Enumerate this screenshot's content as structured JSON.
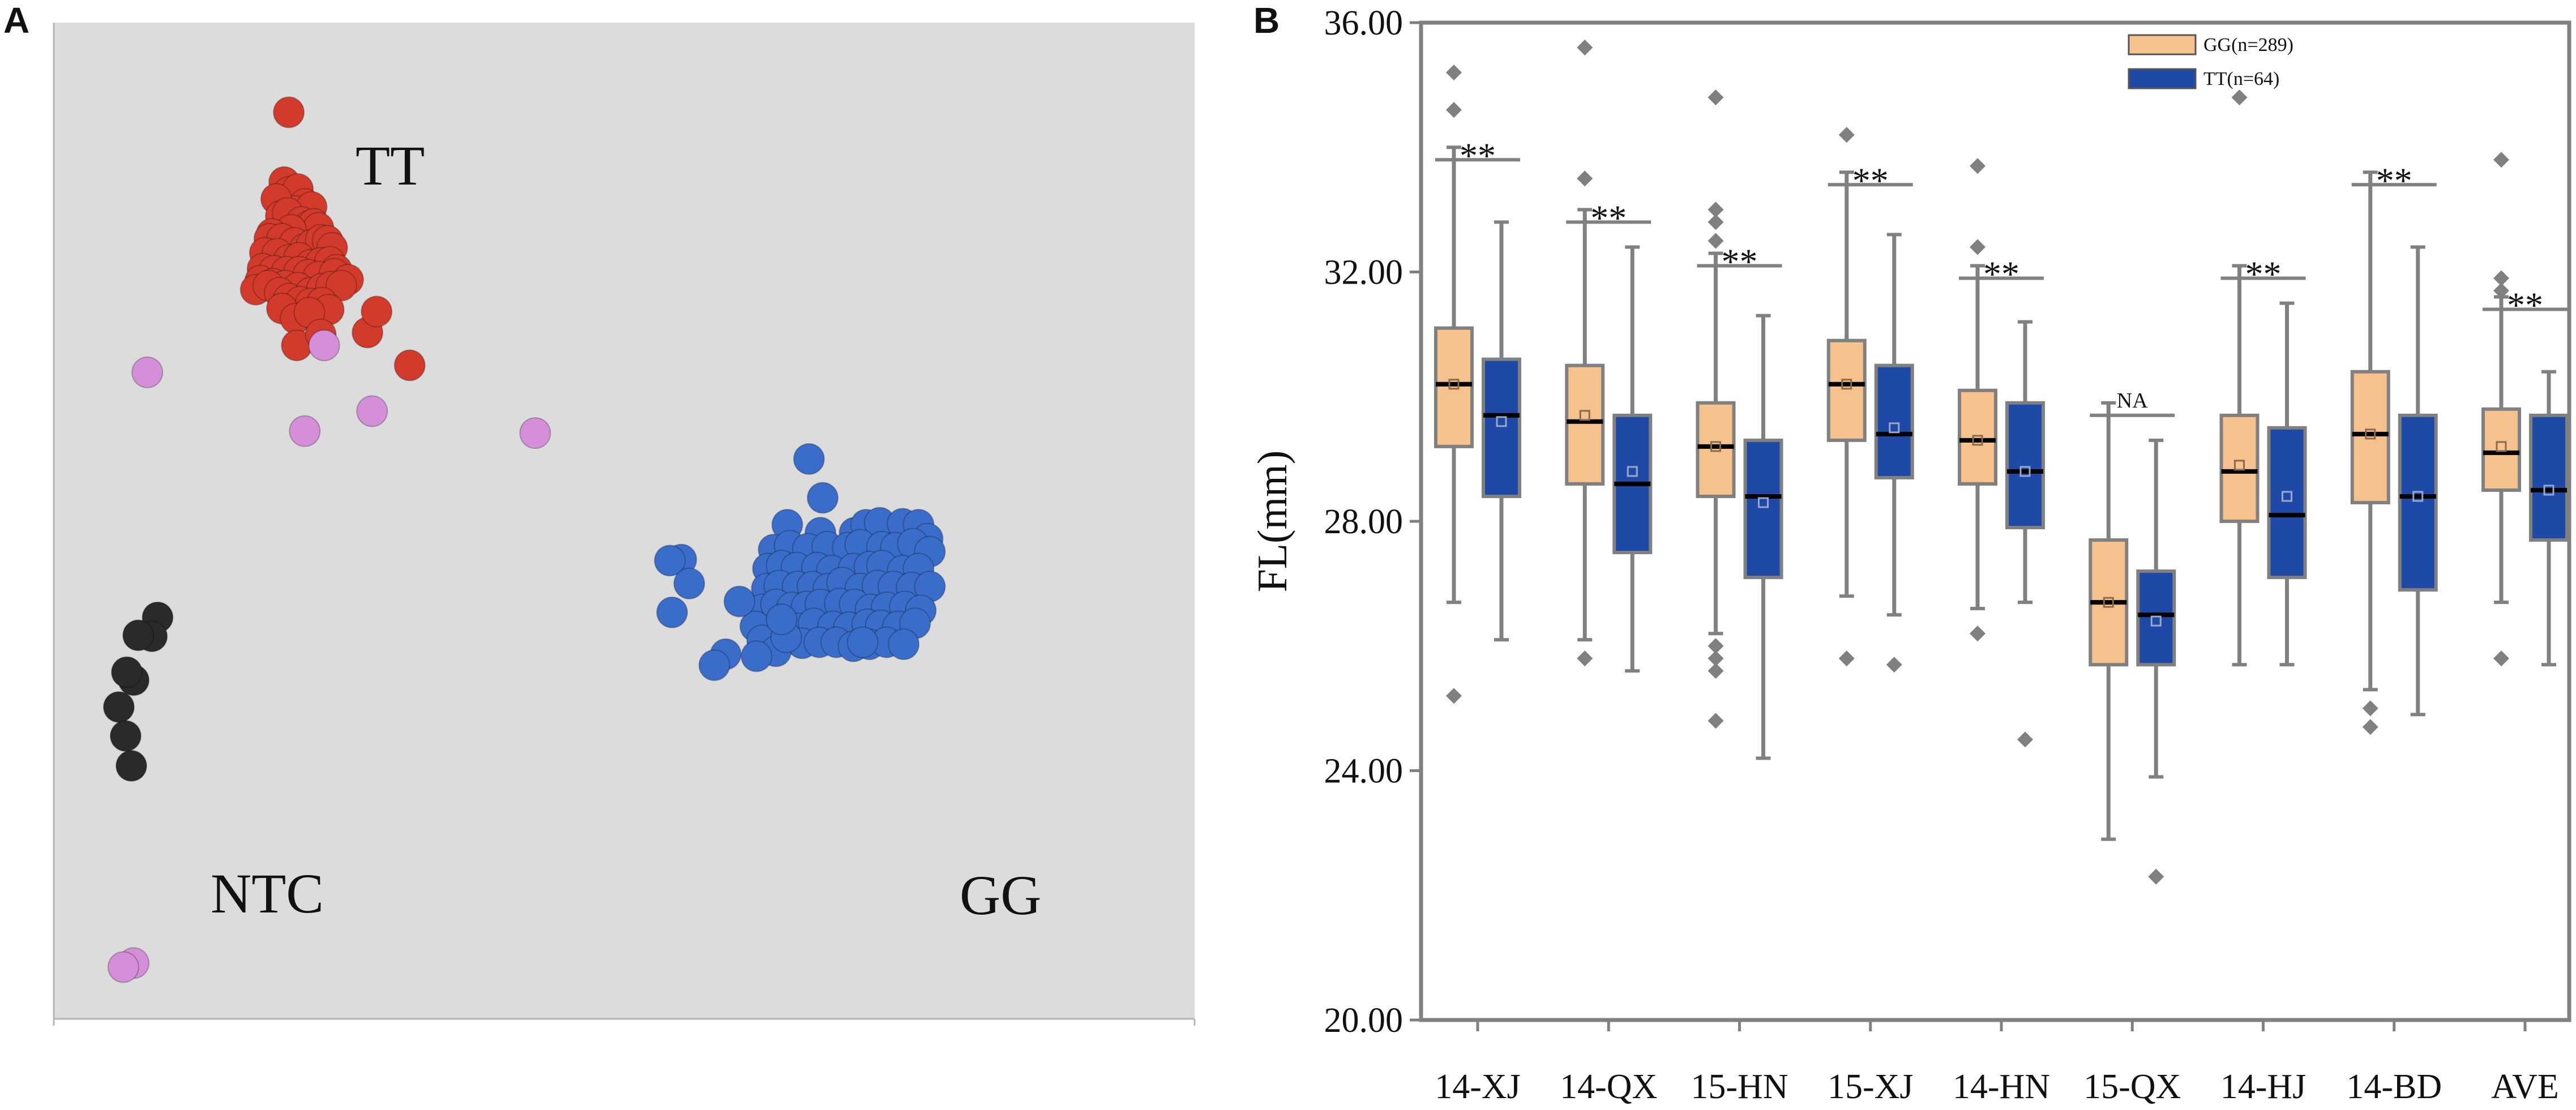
{
  "colors": {
    "scatter_bg": "#dcdcdc",
    "tt": "#d23b2c",
    "gg": "#3a6dc9",
    "ntc": "#2a2a2a",
    "undetermined": "#d48fd8",
    "gg_box": "#f5c18d",
    "tt_box": "#1f49a6",
    "whisker": "#808080",
    "axis": "#808080"
  },
  "panel_a": {
    "label": "A",
    "cluster_labels": {
      "tt": "TT",
      "gg": "GG",
      "ntc": "NTC"
    }
  },
  "panel_b": {
    "label": "B",
    "legend": [
      "GG(n=289)",
      "TT(n=64)"
    ],
    "significance_labels": [
      "**",
      "**",
      "**",
      "**",
      "**",
      "NA",
      "**",
      "**",
      "**"
    ]
  },
  "chart_data": [
    {
      "type": "scatter",
      "title": "",
      "xlabel": "",
      "ylabel": "",
      "xlim": [
        0,
        100
      ],
      "ylim": [
        0,
        100
      ],
      "series": [
        {
          "name": "TT",
          "points": [
            [
              20.6,
              91.0
            ],
            [
              20.2,
              84.0
            ],
            [
              20.6,
              83.0
            ],
            [
              21.4,
              83.3
            ],
            [
              22.0,
              81.8
            ],
            [
              21.1,
              81.1
            ],
            [
              22.6,
              81.5
            ],
            [
              19.5,
              82.3
            ],
            [
              19.9,
              80.6
            ],
            [
              20.5,
              80.9
            ],
            [
              21.7,
              80.0
            ],
            [
              21.7,
              78.7
            ],
            [
              22.4,
              79.6
            ],
            [
              22.8,
              79.8
            ],
            [
              23.2,
              79.4
            ],
            [
              20.8,
              79.2
            ],
            [
              19.1,
              78.8
            ],
            [
              18.9,
              78.3
            ],
            [
              20.0,
              78.3
            ],
            [
              21.1,
              77.9
            ],
            [
              22.0,
              77.3
            ],
            [
              22.6,
              77.7
            ],
            [
              23.4,
              78.2
            ],
            [
              24.0,
              78.1
            ],
            [
              24.4,
              77.4
            ],
            [
              18.5,
              76.9
            ],
            [
              19.6,
              76.8
            ],
            [
              20.6,
              76.2
            ],
            [
              21.5,
              76.4
            ],
            [
              22.5,
              75.7
            ],
            [
              23.4,
              75.9
            ],
            [
              24.2,
              76.0
            ],
            [
              24.8,
              75.2
            ],
            [
              18.3,
              75.3
            ],
            [
              19.3,
              75.1
            ],
            [
              20.4,
              75.0
            ],
            [
              21.5,
              75.0
            ],
            [
              22.3,
              74.7
            ],
            [
              23.2,
              74.5
            ],
            [
              24.6,
              74.8
            ],
            [
              25.8,
              74.2
            ],
            [
              18.1,
              74.1
            ],
            [
              19.2,
              73.8
            ],
            [
              20.3,
              73.6
            ],
            [
              21.4,
              73.4
            ],
            [
              22.5,
              72.9
            ],
            [
              23.5,
              73.3
            ],
            [
              24.3,
              73.5
            ],
            [
              25.2,
              73.6
            ],
            [
              17.7,
              73.2
            ],
            [
              18.8,
              73.6
            ],
            [
              19.8,
              72.9
            ],
            [
              20.6,
              72.3
            ],
            [
              21.6,
              72.0
            ],
            [
              22.5,
              71.8
            ],
            [
              23.5,
              71.9
            ],
            [
              24.1,
              71.2
            ],
            [
              20.0,
              71.3
            ],
            [
              21.2,
              70.3
            ],
            [
              22.4,
              70.9
            ],
            [
              21.3,
              67.6
            ],
            [
              23.4,
              68.7
            ],
            [
              27.5,
              68.9
            ],
            [
              31.2,
              65.6
            ],
            [
              28.3,
              71.0
            ]
          ]
        },
        {
          "name": "GG",
          "points": [
            [
              66.2,
              56.2
            ],
            [
              67.4,
              52.3
            ],
            [
              64.3,
              49.6
            ],
            [
              67.2,
              48.8
            ],
            [
              70.2,
              48.8
            ],
            [
              71.2,
              49.6
            ],
            [
              72.4,
              49.8
            ],
            [
              74.4,
              49.7
            ],
            [
              75.8,
              49.6
            ],
            [
              76.6,
              48.2
            ],
            [
              63.1,
              47.1
            ],
            [
              64.5,
              47.5
            ],
            [
              66.1,
              47.2
            ],
            [
              67.8,
              47.4
            ],
            [
              69.6,
              47.3
            ],
            [
              70.7,
              47.6
            ],
            [
              72.6,
              47.4
            ],
            [
              73.8,
              47.3
            ],
            [
              75.3,
              47.7
            ],
            [
              76.8,
              46.9
            ],
            [
              62.6,
              45.2
            ],
            [
              63.8,
              45.5
            ],
            [
              65.1,
              45.3
            ],
            [
              66.9,
              45.3
            ],
            [
              68.2,
              45.0
            ],
            [
              70.1,
              45.2
            ],
            [
              71.5,
              45.4
            ],
            [
              72.6,
              45.5
            ],
            [
              74.4,
              45.0
            ],
            [
              75.8,
              45.2
            ],
            [
              62.5,
              43.2
            ],
            [
              63.6,
              43.5
            ],
            [
              65.2,
              43.4
            ],
            [
              66.5,
              43.4
            ],
            [
              67.9,
              43.2
            ],
            [
              69.1,
              43.8
            ],
            [
              70.7,
              43.2
            ],
            [
              72.2,
              43.5
            ],
            [
              73.6,
              43.4
            ],
            [
              75.2,
              43.3
            ],
            [
              76.8,
              43.4
            ],
            [
              62.1,
              41.1
            ],
            [
              63.3,
              41.6
            ],
            [
              64.7,
              41.3
            ],
            [
              66.0,
              41.4
            ],
            [
              67.2,
              41.6
            ],
            [
              68.9,
              41.7
            ],
            [
              70.2,
              41.6
            ],
            [
              71.6,
              41.1
            ],
            [
              73.0,
              41.3
            ],
            [
              74.6,
              41.4
            ],
            [
              76.0,
              41.0
            ],
            [
              63.6,
              39.5
            ],
            [
              65.2,
              39.2
            ],
            [
              66.6,
              39.7
            ],
            [
              68.3,
              39.4
            ],
            [
              69.7,
              39.3
            ],
            [
              71.3,
              39.6
            ],
            [
              72.5,
              39.5
            ],
            [
              74.0,
              39.4
            ],
            [
              75.5,
              39.7
            ],
            [
              65.6,
              37.7
            ],
            [
              67.1,
              37.8
            ],
            [
              68.6,
              37.8
            ],
            [
              70.1,
              37.4
            ],
            [
              71.5,
              37.6
            ],
            [
              73.0,
              37.8
            ],
            [
              74.5,
              37.6
            ],
            [
              61.5,
              39.4
            ],
            [
              62.1,
              38.0
            ],
            [
              63.3,
              36.9
            ],
            [
              64.2,
              38.3
            ],
            [
              70.9,
              37.8
            ],
            [
              58.9,
              36.6
            ],
            [
              54.2,
              40.8
            ],
            [
              55.0,
              46.1
            ],
            [
              57.9,
              35.5
            ],
            [
              54.0,
              46.0
            ],
            [
              55.7,
              43.7
            ],
            [
              61.6,
              36.4
            ],
            [
              63.8,
              40.1
            ],
            [
              60.1,
              41.9
            ]
          ]
        },
        {
          "name": "NTC",
          "points": [
            [
              9.1,
              40.3
            ],
            [
              8.6,
              38.4
            ],
            [
              7.4,
              38.5
            ],
            [
              7.0,
              34.0
            ],
            [
              6.4,
              34.8
            ],
            [
              5.7,
              31.3
            ],
            [
              6.3,
              28.4
            ],
            [
              6.8,
              25.4
            ]
          ]
        },
        {
          "name": "Undetermined",
          "points": [
            [
              23.7,
              67.6
            ],
            [
              8.2,
              64.9
            ],
            [
              27.9,
              61.0
            ],
            [
              42.2,
              58.8
            ],
            [
              22.0,
              59.0
            ],
            [
              7.0,
              5.6
            ],
            [
              6.1,
              5.2
            ]
          ]
        }
      ]
    },
    {
      "type": "box",
      "title": "",
      "xlabel": "",
      "ylabel": "FL(mm)",
      "ylim": [
        20.0,
        36.0
      ],
      "yticks": [
        "20.00",
        "24.00",
        "28.00",
        "32.00",
        "36.00"
      ],
      "categories": [
        "14-XJ",
        "14-QX",
        "15-HN",
        "15-XJ",
        "14-HN",
        "15-QX",
        "14-HJ",
        "14-BD",
        "AVE"
      ],
      "series": [
        {
          "name": "GG(n=289)",
          "boxes": [
            {
              "whisker_low": 26.7,
              "q1": 29.2,
              "median": 30.2,
              "mean": 30.2,
              "q3": 31.1,
              "whisker_high": 34.0,
              "outliers": [
                35.2,
                34.6,
                25.2
              ]
            },
            {
              "whisker_low": 26.1,
              "q1": 28.6,
              "median": 29.6,
              "mean": 29.7,
              "q3": 30.5,
              "whisker_high": 33.0,
              "outliers": [
                35.6,
                33.5,
                25.8
              ]
            },
            {
              "whisker_low": 26.2,
              "q1": 28.4,
              "median": 29.2,
              "mean": 29.2,
              "q3": 29.9,
              "whisker_high": 32.3,
              "outliers": [
                34.8,
                33.0,
                32.8,
                32.5,
                26.0,
                25.8,
                25.6,
                24.8
              ]
            },
            {
              "whisker_low": 26.8,
              "q1": 29.3,
              "median": 30.2,
              "mean": 30.2,
              "q3": 30.9,
              "whisker_high": 33.6,
              "outliers": [
                34.2,
                25.8
              ]
            },
            {
              "whisker_low": 26.6,
              "q1": 28.6,
              "median": 29.3,
              "mean": 29.3,
              "q3": 30.1,
              "whisker_high": 32.1,
              "outliers": [
                33.7,
                32.4,
                26.2
              ]
            },
            {
              "whisker_low": 22.9,
              "q1": 25.7,
              "median": 26.7,
              "mean": 26.7,
              "q3": 27.7,
              "whisker_high": 29.9,
              "outliers": []
            },
            {
              "whisker_low": 25.7,
              "q1": 28.0,
              "median": 28.8,
              "mean": 28.9,
              "q3": 29.7,
              "whisker_high": 32.1,
              "outliers": [
                34.8
              ]
            },
            {
              "whisker_low": 25.3,
              "q1": 28.3,
              "median": 29.4,
              "mean": 29.4,
              "q3": 30.4,
              "whisker_high": 33.6,
              "outliers": [
                25.0,
                24.7
              ]
            },
            {
              "whisker_low": 26.7,
              "q1": 28.5,
              "median": 29.1,
              "mean": 29.2,
              "q3": 29.8,
              "whisker_high": 31.6,
              "outliers": [
                33.8,
                31.9,
                31.7,
                25.8
              ]
            }
          ]
        },
        {
          "name": "TT(n=64)",
          "boxes": [
            {
              "whisker_low": 26.1,
              "q1": 28.4,
              "median": 29.7,
              "mean": 29.6,
              "q3": 30.6,
              "whisker_high": 32.8,
              "outliers": []
            },
            {
              "whisker_low": 25.6,
              "q1": 27.5,
              "median": 28.6,
              "mean": 28.8,
              "q3": 29.7,
              "whisker_high": 32.4,
              "outliers": []
            },
            {
              "whisker_low": 24.2,
              "q1": 27.1,
              "median": 28.4,
              "mean": 28.3,
              "q3": 29.3,
              "whisker_high": 31.3,
              "outliers": []
            },
            {
              "whisker_low": 26.5,
              "q1": 28.7,
              "median": 29.4,
              "mean": 29.5,
              "q3": 30.5,
              "whisker_high": 32.6,
              "outliers": [
                25.7
              ]
            },
            {
              "whisker_low": 26.7,
              "q1": 27.9,
              "median": 28.8,
              "mean": 28.8,
              "q3": 29.9,
              "whisker_high": 31.2,
              "outliers": [
                24.5
              ]
            },
            {
              "whisker_low": 23.9,
              "q1": 25.7,
              "median": 26.5,
              "mean": 26.4,
              "q3": 27.2,
              "whisker_high": 29.3,
              "outliers": [
                22.3
              ]
            },
            {
              "whisker_low": 25.7,
              "q1": 27.1,
              "median": 28.1,
              "mean": 28.4,
              "q3": 29.5,
              "whisker_high": 31.5,
              "outliers": []
            },
            {
              "whisker_low": 24.9,
              "q1": 26.9,
              "median": 28.4,
              "mean": 28.4,
              "q3": 29.7,
              "whisker_high": 32.4,
              "outliers": []
            },
            {
              "whisker_low": 25.7,
              "q1": 27.7,
              "median": 28.5,
              "mean": 28.5,
              "q3": 29.7,
              "whisker_high": 30.4,
              "outliers": []
            }
          ]
        }
      ],
      "significance": [
        "**",
        "**",
        "**",
        "**",
        "**",
        "NA",
        "**",
        "**",
        "**"
      ],
      "legend_position": "top-right"
    }
  ]
}
